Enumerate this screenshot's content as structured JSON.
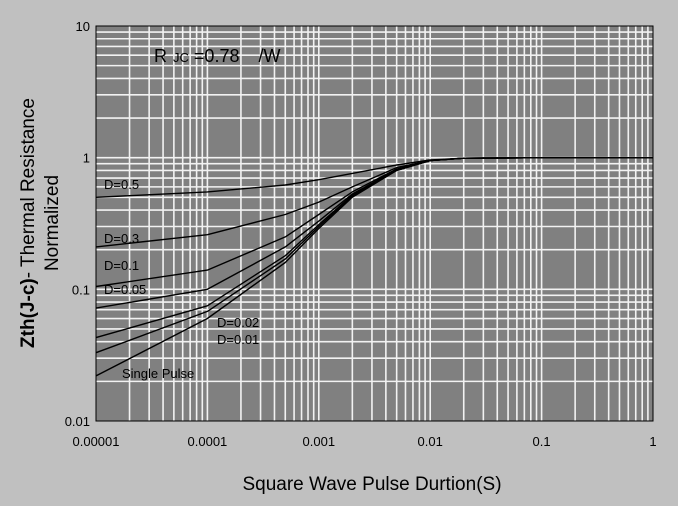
{
  "chart_data": {
    "type": "line",
    "title": "",
    "annotation": {
      "r_symbol": "R",
      "r_subscript": "JC",
      "r_value_text": "=0.78",
      "r_unit": "/W"
    },
    "xlabel": "Square Wave Pulse Durtion(S)",
    "ylabel_bold": "Zth(J-c)",
    "ylabel_line1_rest": "- Thermal Resistance",
    "ylabel_line2": "Normalized",
    "xscale": "log",
    "yscale": "log",
    "xlim": [
      1e-05,
      1
    ],
    "ylim": [
      0.01,
      10
    ],
    "grid": true,
    "x_ticks": [
      "0.00001",
      "0.0001",
      "0.001",
      "0.01",
      "0.1",
      "1"
    ],
    "y_ticks": [
      "0.01",
      "0.1",
      "1",
      "10"
    ],
    "series": [
      {
        "name": "D=0.5",
        "x": [
          1e-05,
          0.0001,
          0.0005,
          0.001,
          0.002,
          0.005,
          0.01,
          0.02,
          0.1,
          1
        ],
        "y": [
          0.5,
          0.55,
          0.62,
          0.68,
          0.76,
          0.88,
          0.96,
          0.99,
          1.0,
          1.0
        ]
      },
      {
        "name": "D=0.3",
        "x": [
          1e-05,
          0.0001,
          0.0005,
          0.001,
          0.002,
          0.005,
          0.01,
          0.02,
          0.1,
          1
        ],
        "y": [
          0.21,
          0.26,
          0.37,
          0.46,
          0.6,
          0.84,
          0.95,
          0.99,
          1.0,
          1.0
        ]
      },
      {
        "name": "D=0.1",
        "x": [
          1e-05,
          0.0001,
          0.0005,
          0.001,
          0.002,
          0.005,
          0.01,
          0.02,
          0.1,
          1
        ],
        "y": [
          0.105,
          0.14,
          0.25,
          0.37,
          0.55,
          0.82,
          0.95,
          0.99,
          1.0,
          1.0
        ]
      },
      {
        "name": "D=0.05",
        "x": [
          1e-05,
          0.0001,
          0.0005,
          0.001,
          0.002,
          0.005,
          0.01,
          0.02,
          0.1,
          1
        ],
        "y": [
          0.072,
          0.1,
          0.21,
          0.33,
          0.53,
          0.81,
          0.95,
          0.99,
          1.0,
          1.0
        ]
      },
      {
        "name": "D=0.02",
        "x": [
          1e-05,
          0.0001,
          0.0005,
          0.001,
          0.002,
          0.005,
          0.01,
          0.02,
          0.1,
          1
        ],
        "y": [
          0.043,
          0.075,
          0.18,
          0.31,
          0.52,
          0.81,
          0.95,
          0.99,
          1.0,
          1.0
        ]
      },
      {
        "name": "D=0.01",
        "x": [
          1e-05,
          0.0001,
          0.0005,
          0.001,
          0.002,
          0.005,
          0.01,
          0.02,
          0.1,
          1
        ],
        "y": [
          0.033,
          0.068,
          0.17,
          0.3,
          0.51,
          0.8,
          0.95,
          0.99,
          1.0,
          1.0
        ]
      },
      {
        "name": "Single Pulse",
        "x": [
          1e-05,
          0.0001,
          0.0005,
          0.001,
          0.002,
          0.005,
          0.01,
          0.02,
          0.1,
          1
        ],
        "y": [
          0.022,
          0.06,
          0.16,
          0.29,
          0.5,
          0.8,
          0.95,
          0.99,
          1.0,
          1.0
        ]
      }
    ]
  }
}
